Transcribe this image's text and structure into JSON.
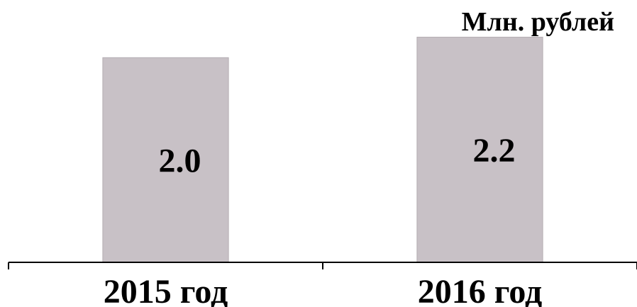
{
  "chart_data": {
    "type": "bar",
    "title": "",
    "unit_label": "Млн. рублей",
    "xlabel": "",
    "ylabel": "",
    "categories": [
      "2015 год",
      "2016 год"
    ],
    "values": [
      2.0,
      2.2
    ],
    "value_labels": [
      "2.0",
      "2.2"
    ],
    "ylim": [
      0,
      2.3
    ],
    "grid": false,
    "legend": "none",
    "bar_color": "#c8c1c6",
    "axis_color": "#000000"
  }
}
